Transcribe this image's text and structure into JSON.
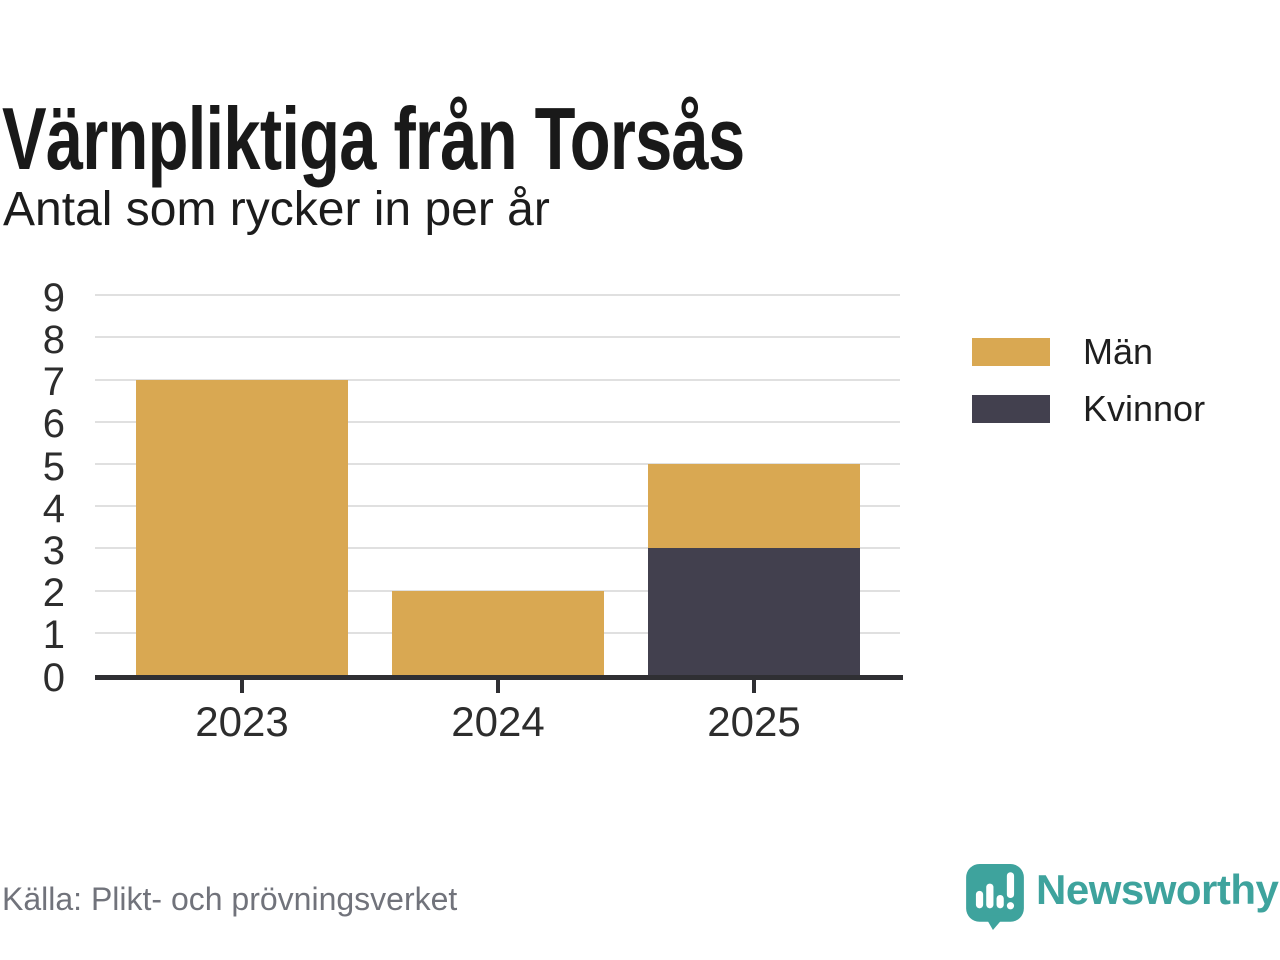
{
  "header": {
    "title": "Värnpliktiga från Torsås",
    "subtitle": "Antal som rycker in per år"
  },
  "chart_data": {
    "type": "bar",
    "stacked": true,
    "title": "Värnpliktiga från Torsås",
    "subtitle": "Antal som rycker in per år",
    "categories": [
      "2023",
      "2024",
      "2025"
    ],
    "series": [
      {
        "name": "Män",
        "color": "#D9A852",
        "values": [
          7,
          2,
          2
        ]
      },
      {
        "name": "Kvinnor",
        "color": "#42404E",
        "values": [
          0,
          0,
          3
        ]
      }
    ],
    "xlabel": "",
    "ylabel": "",
    "ylim": [
      0,
      9
    ],
    "yticks": [
      0,
      1,
      2,
      3,
      4,
      5,
      6,
      7,
      8,
      9
    ],
    "grid": true,
    "legend_position": "right",
    "notes": "2025 bar is stacked: Kvinnor 3 at bottom, Män 2 on top (total 5)"
  },
  "footer": {
    "source": "Källa: Plikt- och prövningsverket",
    "brand": "Newsworthy",
    "logo_icon": "speech-bubble-with-bar-chart-and-exclamation"
  },
  "colors": {
    "man_gold": "#D9A852",
    "kvinnor_dark": "#42404E",
    "grid": "#E0E0E0",
    "axis": "#2F2F33",
    "brand_teal": "#3EA39D",
    "source_text": "#71737B",
    "title_text": "#191919"
  }
}
